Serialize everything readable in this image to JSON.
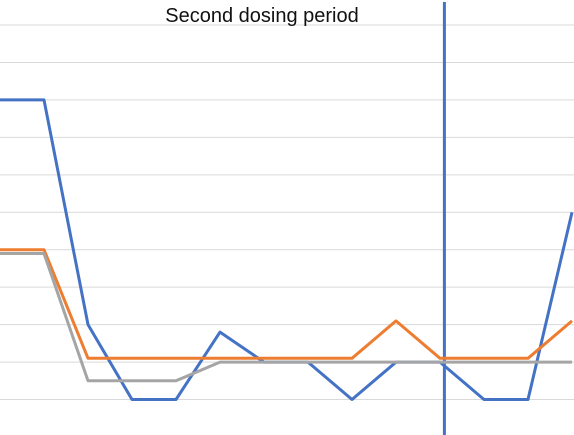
{
  "chart_data": {
    "type": "line",
    "title": "Second dosing period",
    "xlabel": "",
    "ylabel": "",
    "x": [
      0,
      1,
      2,
      3,
      4,
      5,
      6,
      7,
      8,
      9,
      10,
      11,
      12,
      13
    ],
    "ylim": [
      0,
      11
    ],
    "grid": true,
    "legend": "none",
    "vertical_marker": {
      "x": 10.1,
      "color": "#4472C4"
    },
    "series": [
      {
        "color": "#4472C4",
        "values": [
          9,
          9,
          3,
          1,
          1,
          2.8,
          2,
          2,
          1,
          2,
          2,
          1,
          1,
          6
        ]
      },
      {
        "color": "#ED7D31",
        "values": [
          5,
          5,
          2.1,
          2.1,
          2.1,
          2.1,
          2.1,
          2.1,
          2.1,
          3.1,
          2.1,
          2.1,
          2.1,
          3.1
        ]
      },
      {
        "color": "#A5A5A5",
        "values": [
          4.9,
          4.9,
          1.5,
          1.5,
          1.5,
          2,
          2,
          2,
          2,
          2,
          2,
          2,
          2,
          2
        ]
      }
    ]
  }
}
